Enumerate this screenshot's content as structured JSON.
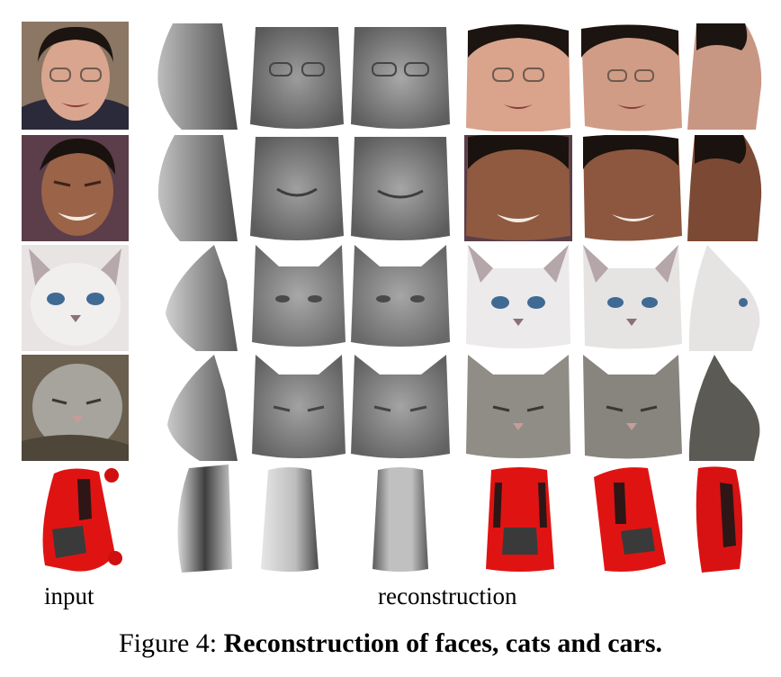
{
  "figure": {
    "column_labels": {
      "input": "input",
      "reconstruction": "reconstruction"
    },
    "caption": {
      "prefix": "Figure 4:",
      "title": "Reconstruction of faces, cats and cars."
    }
  }
}
